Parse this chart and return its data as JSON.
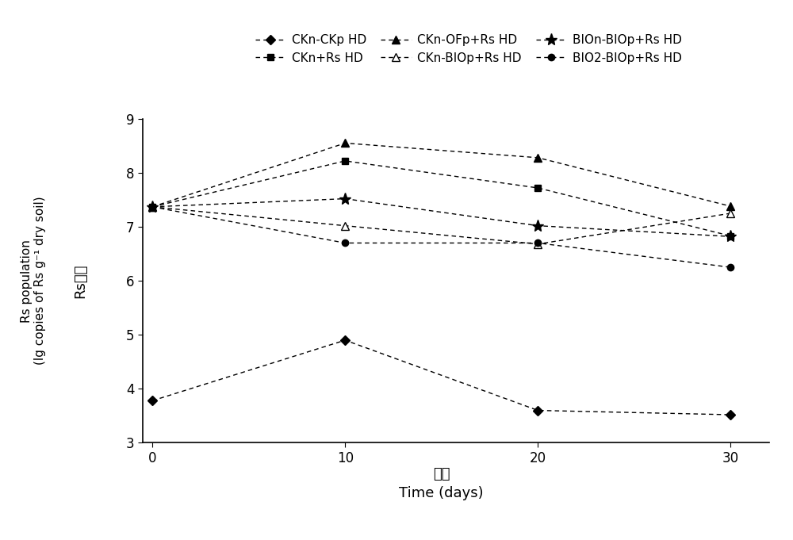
{
  "x": [
    0,
    10,
    20,
    30
  ],
  "series": [
    {
      "label": "CKn-CKp HD",
      "values": [
        3.78,
        4.9,
        3.6,
        3.52
      ],
      "color": "#000000",
      "marker": "D",
      "markersize": 6,
      "markerfacecolor": "#000000",
      "linestyle": "--"
    },
    {
      "label": "CKn+Rs HD",
      "values": [
        7.37,
        8.22,
        7.72,
        6.83
      ],
      "color": "#000000",
      "marker": "s",
      "markersize": 6,
      "markerfacecolor": "#000000",
      "linestyle": "--"
    },
    {
      "label": "CKn-OFp+Rs HD",
      "values": [
        7.37,
        8.55,
        8.28,
        7.38
      ],
      "color": "#000000",
      "marker": "^",
      "markersize": 7,
      "markerfacecolor": "#000000",
      "linestyle": "--"
    },
    {
      "label": "CKn-BIOp+Rs HD",
      "values": [
        7.37,
        7.02,
        6.68,
        7.25
      ],
      "color": "#000000",
      "marker": "^",
      "markersize": 7,
      "markerfacecolor": "white",
      "linestyle": "--"
    },
    {
      "label": "BIOn-BIOp+Rs HD",
      "values": [
        7.37,
        7.52,
        7.02,
        6.82
      ],
      "color": "#000000",
      "marker": "*",
      "markersize": 11,
      "markerfacecolor": "#000000",
      "linestyle": "--"
    },
    {
      "label": "BIO2-BIOp+Rs HD",
      "values": [
        7.37,
        6.7,
        6.7,
        6.25
      ],
      "color": "#000000",
      "marker": "o",
      "markersize": 6,
      "markerfacecolor": "#000000",
      "linestyle": "--"
    }
  ],
  "xlim": [
    -0.5,
    32
  ],
  "ylim": [
    3,
    9
  ],
  "xticks": [
    0,
    10,
    20,
    30
  ],
  "yticks": [
    3,
    4,
    5,
    6,
    7,
    8,
    9
  ],
  "xlabel_cn": "时间",
  "xlabel_en": "Time (days)",
  "ylabel_cn": "Rs数量",
  "ylabel_en": "Rs population\n(lg copies of Rs g⁻¹ dry soil)",
  "figsize": [
    10.0,
    6.81
  ],
  "dpi": 100
}
